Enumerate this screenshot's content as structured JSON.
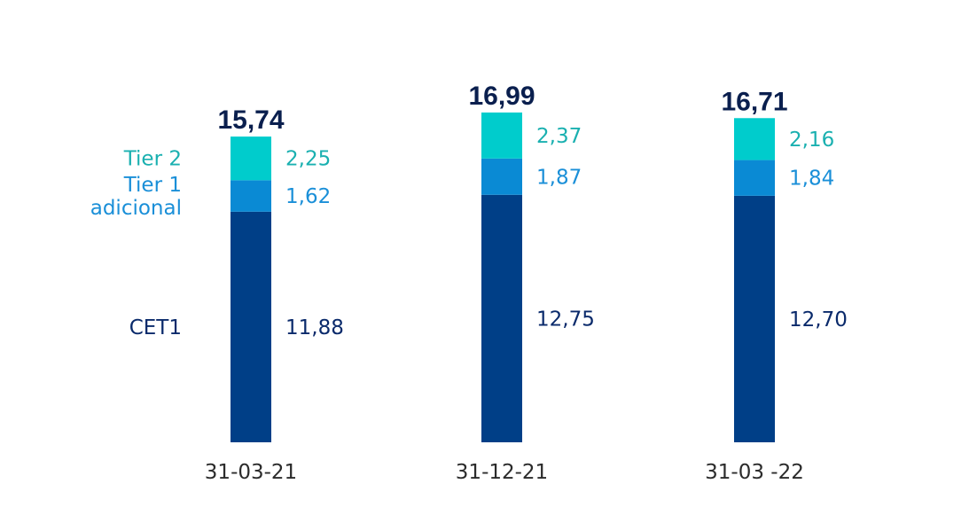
{
  "chart_data": {
    "type": "bar",
    "stacked": true,
    "categories": [
      "31-03-21",
      "31-12-21",
      "31-03 -22"
    ],
    "series": [
      {
        "name": "CET1",
        "values": [
          11.88,
          12.75,
          12.7
        ],
        "labels": [
          "11,88",
          "12,75",
          "12,70"
        ],
        "color": "#003f87"
      },
      {
        "name": "Tier 1 adicional",
        "values": [
          1.62,
          1.87,
          1.84
        ],
        "labels": [
          "1,62",
          "1,87",
          "1,84"
        ],
        "color": "#0a8ad4"
      },
      {
        "name": "Tier 2",
        "values": [
          2.25,
          2.37,
          2.16
        ],
        "labels": [
          "2,25",
          "2,37",
          "2,16"
        ],
        "color": "#00cccc"
      }
    ],
    "totals": [
      15.74,
      16.99,
      16.71
    ],
    "total_labels": [
      "15,74",
      "16,99",
      "16,71"
    ],
    "legend_lines": {
      "cet1": [
        "CET1"
      ],
      "tier1": [
        "Tier 1",
        "adicional"
      ],
      "tier2": [
        "Tier 2"
      ]
    },
    "label_colors": {
      "cet1": "#0a2a6b",
      "tier1": "#1a8fd8",
      "tier2": "#1ab0b0"
    },
    "ylim": [
      0,
      17
    ]
  }
}
